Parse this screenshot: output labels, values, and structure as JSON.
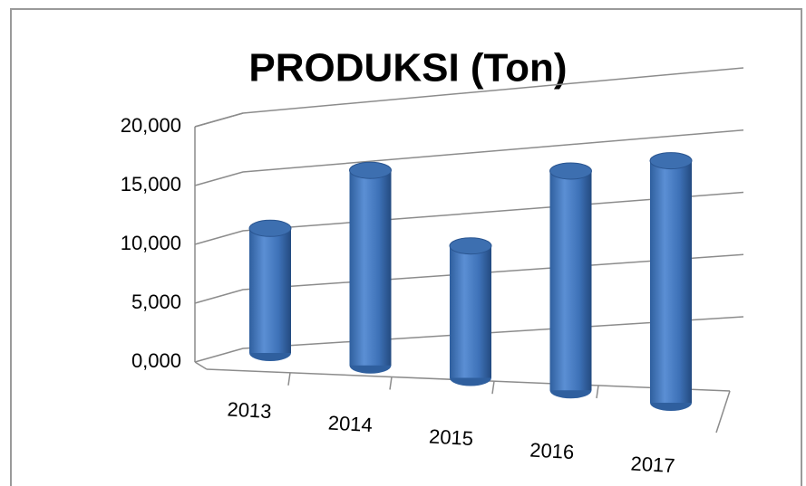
{
  "chart_data": {
    "type": "bar3d",
    "title": "PRODUKSI (Ton)",
    "categories": [
      "2013",
      "2014",
      "2015",
      "2016",
      "2017"
    ],
    "values": [
      10800,
      16500,
      10900,
      17700,
      19100
    ],
    "color": "#4a7ebb",
    "ylim": [
      0,
      20000
    ],
    "yticks": [
      {
        "value": 0,
        "label": "0,000"
      },
      {
        "value": 5000,
        "label": "5,000"
      },
      {
        "value": 10000,
        "label": "10,000"
      },
      {
        "value": 15000,
        "label": "15,000"
      },
      {
        "value": 20000,
        "label": "20,000"
      }
    ],
    "grid": true
  }
}
